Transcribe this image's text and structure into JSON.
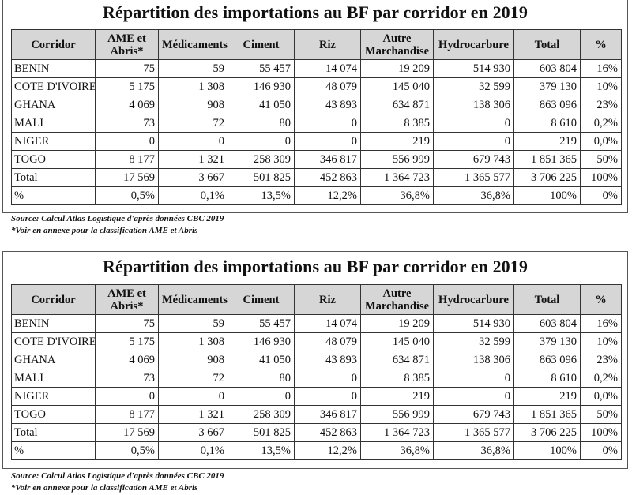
{
  "panels": [
    {
      "title": "Répartition des importations au BF par corridor en 2019",
      "table": {
        "headers": [
          "Corridor",
          "AME et Abris*",
          "Médicaments",
          "Ciment",
          "Riz",
          "Autre Marchandise",
          "Hydrocarbure",
          "Total",
          "%"
        ],
        "rows": [
          [
            "BENIN",
            "75",
            "59",
            "55 457",
            "14 074",
            "19 209",
            "514 930",
            "603 804",
            "16%"
          ],
          [
            "COTE D'IVOIRE",
            "5 175",
            "1 308",
            "146 930",
            "48 079",
            "145 040",
            "32 599",
            "379 130",
            "10%"
          ],
          [
            "GHANA",
            "4 069",
            "908",
            "41 050",
            "43 893",
            "634 871",
            "138 306",
            "863 096",
            "23%"
          ],
          [
            "MALI",
            "73",
            "72",
            "80",
            "0",
            "8 385",
            "0",
            "8 610",
            "0,2%"
          ],
          [
            "NIGER",
            "0",
            "0",
            "0",
            "0",
            "219",
            "0",
            "219",
            "0,0%"
          ],
          [
            "TOGO",
            "8 177",
            "1 321",
            "258 309",
            "346 817",
            "556 999",
            "679 743",
            "1 851 365",
            "50%"
          ],
          [
            "Total",
            "17 569",
            "3 667",
            "501 825",
            "452 863",
            "1 364 723",
            "1 365 577",
            "3 706 225",
            "100%"
          ],
          [
            "%",
            "0,5%",
            "0,1%",
            "13,5%",
            "12,2%",
            "36,8%",
            "36,8%",
            "100%",
            "0%"
          ]
        ]
      },
      "notes": [
        "Source: Calcul Atlas Logistique d'après données CBC 2019",
        "*Voir en annexe pour la classification AME et Abris"
      ]
    },
    {
      "title": "Répartition des importations au BF par corridor en 2019",
      "table": {
        "headers": [
          "Corridor",
          "AME et Abris*",
          "Médicaments",
          "Ciment",
          "Riz",
          "Autre Marchandise",
          "Hydrocarbure",
          "Total",
          "%"
        ],
        "rows": [
          [
            "BENIN",
            "75",
            "59",
            "55 457",
            "14 074",
            "19 209",
            "514 930",
            "603 804",
            "16%"
          ],
          [
            "COTE D'IVOIRE",
            "5 175",
            "1 308",
            "146 930",
            "48 079",
            "145 040",
            "32 599",
            "379 130",
            "10%"
          ],
          [
            "GHANA",
            "4 069",
            "908",
            "41 050",
            "43 893",
            "634 871",
            "138 306",
            "863 096",
            "23%"
          ],
          [
            "MALI",
            "73",
            "72",
            "80",
            "0",
            "8 385",
            "0",
            "8 610",
            "0,2%"
          ],
          [
            "NIGER",
            "0",
            "0",
            "0",
            "0",
            "219",
            "0",
            "219",
            "0,0%"
          ],
          [
            "TOGO",
            "8 177",
            "1 321",
            "258 309",
            "346 817",
            "556 999",
            "679 743",
            "1 851 365",
            "50%"
          ],
          [
            "Total",
            "17 569",
            "3 667",
            "501 825",
            "452 863",
            "1 364 723",
            "1 365 577",
            "3 706 225",
            "100%"
          ],
          [
            "%",
            "0,5%",
            "0,1%",
            "13,5%",
            "12,2%",
            "36,8%",
            "36,8%",
            "100%",
            "0%"
          ]
        ]
      },
      "notes": [
        "Source: Calcul Atlas Logistique d'après données CBC 2019",
        "*Voir en annexe pour la classification AME et Abris"
      ]
    }
  ]
}
